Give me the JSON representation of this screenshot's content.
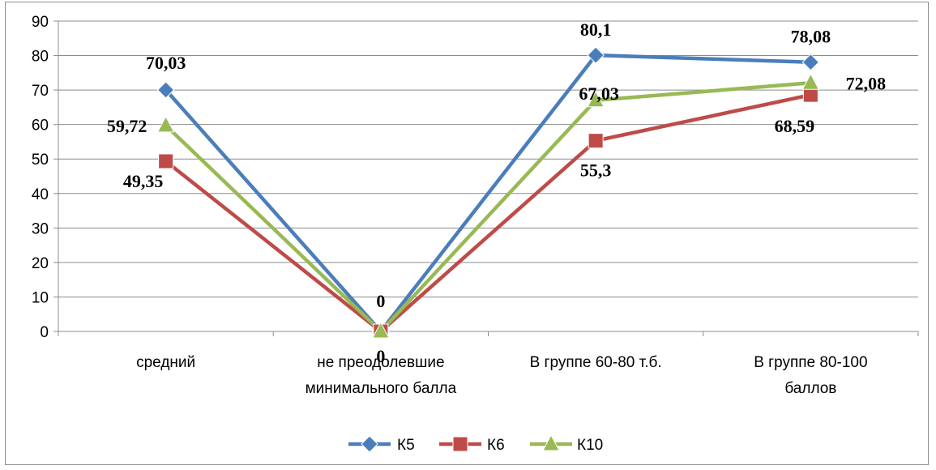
{
  "chart_data": {
    "type": "line",
    "ylim": [
      0,
      90
    ],
    "yticks": [
      "0",
      "10",
      "20",
      "30",
      "40",
      "50",
      "60",
      "70",
      "80",
      "90"
    ],
    "categories": [
      [
        "средний"
      ],
      [
        "не преодолевшие",
        "минимального балла"
      ],
      [
        "В группе 60-80 т.б."
      ],
      [
        "В группе 80-100",
        "баллов"
      ]
    ],
    "legend_position": "bottom",
    "grid": true,
    "series": [
      {
        "name": "К5",
        "color": "#4a7ebb",
        "marker": "diamond",
        "values": [
          70.03,
          0,
          80.1,
          78.08
        ],
        "labels": [
          "70,03",
          "0",
          "80,1",
          "78,08"
        ]
      },
      {
        "name": "К6",
        "color": "#be4b48",
        "marker": "square",
        "values": [
          49.35,
          0,
          55.3,
          68.59
        ],
        "labels": [
          "49,35",
          "0",
          "55,3",
          "68,59"
        ]
      },
      {
        "name": "К10",
        "color": "#98b954",
        "marker": "triangle",
        "values": [
          59.72,
          0,
          67.03,
          72.08
        ],
        "labels": [
          "59,72",
          "0",
          "67,03",
          "72,08"
        ]
      }
    ]
  }
}
